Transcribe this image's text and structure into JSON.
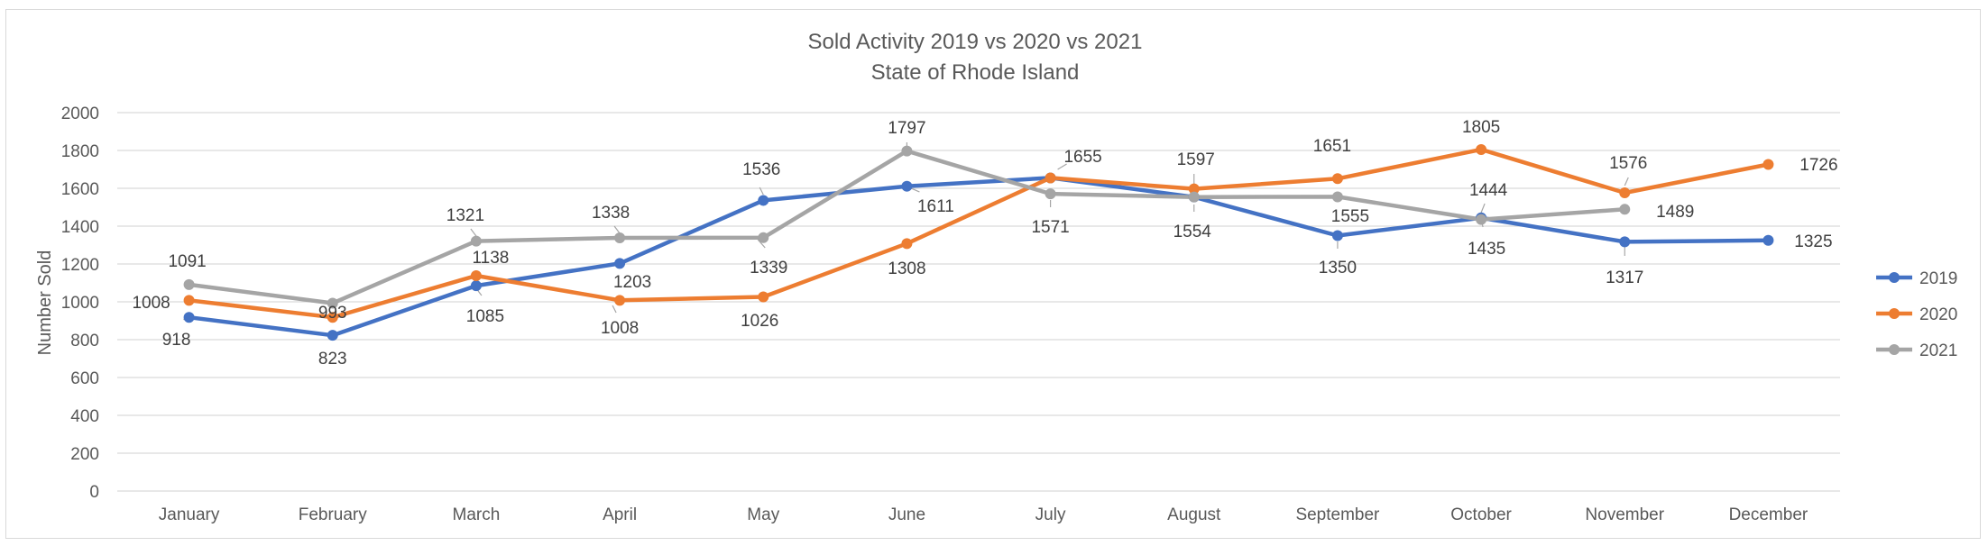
{
  "chart_data": {
    "type": "line",
    "title": "Sold Activity 2019 vs 2020 vs 2021",
    "subtitle": "State of Rhode Island",
    "ylabel": "Number Sold",
    "xlabel": "",
    "ylim": [
      0,
      2000
    ],
    "ytick_step": 200,
    "grid": true,
    "legend_position": "right",
    "categories": [
      "January",
      "February",
      "March",
      "April",
      "May",
      "June",
      "July",
      "August",
      "September",
      "October",
      "November",
      "December"
    ],
    "series": [
      {
        "name": "2019",
        "color": "#4472c4",
        "values": [
          918,
          823,
          1085,
          1203,
          1536,
          1611,
          1655,
          1554,
          1350,
          1444,
          1317,
          1325
        ]
      },
      {
        "name": "2020",
        "color": "#ed7d31",
        "values": [
          1008,
          918,
          1138,
          1008,
          1026,
          1308,
          1655,
          1597,
          1651,
          1805,
          1576,
          1726
        ]
      },
      {
        "name": "2021",
        "color": "#a5a5a5",
        "values": [
          1091,
          993,
          1321,
          1338,
          1339,
          1797,
          1571,
          1554,
          1555,
          1435,
          1489,
          null
        ]
      }
    ],
    "data_labels": [
      {
        "category": "January",
        "text": "918"
      },
      {
        "category": "January",
        "text": "1008"
      },
      {
        "category": "January",
        "text": "1091"
      },
      {
        "category": "February",
        "text": "823"
      },
      {
        "category": "February",
        "text": "993"
      },
      {
        "category": "March",
        "text": "1085"
      },
      {
        "category": "March",
        "text": "1138"
      },
      {
        "category": "March",
        "text": "1321"
      },
      {
        "category": "April",
        "text": "1203"
      },
      {
        "category": "April",
        "text": "1008"
      },
      {
        "category": "April",
        "text": "1338"
      },
      {
        "category": "May",
        "text": "1536"
      },
      {
        "category": "May",
        "text": "1026"
      },
      {
        "category": "May",
        "text": "1339"
      },
      {
        "category": "June",
        "text": "1611"
      },
      {
        "category": "June",
        "text": "1308"
      },
      {
        "category": "June",
        "text": "1797"
      },
      {
        "category": "July",
        "text": "1655"
      },
      {
        "category": "July",
        "text": "1571"
      },
      {
        "category": "August",
        "text": "1597"
      },
      {
        "category": "August",
        "text": "1554"
      },
      {
        "category": "September",
        "text": "1350"
      },
      {
        "category": "September",
        "text": "1651"
      },
      {
        "category": "September",
        "text": "1555"
      },
      {
        "category": "October",
        "text": "1805"
      },
      {
        "category": "October",
        "text": "1444"
      },
      {
        "category": "October",
        "text": "1435"
      },
      {
        "category": "November",
        "text": "1317"
      },
      {
        "category": "November",
        "text": "1576"
      },
      {
        "category": "November",
        "text": "1489"
      },
      {
        "category": "December",
        "text": "1325"
      },
      {
        "category": "December",
        "text": "1726"
      }
    ]
  }
}
